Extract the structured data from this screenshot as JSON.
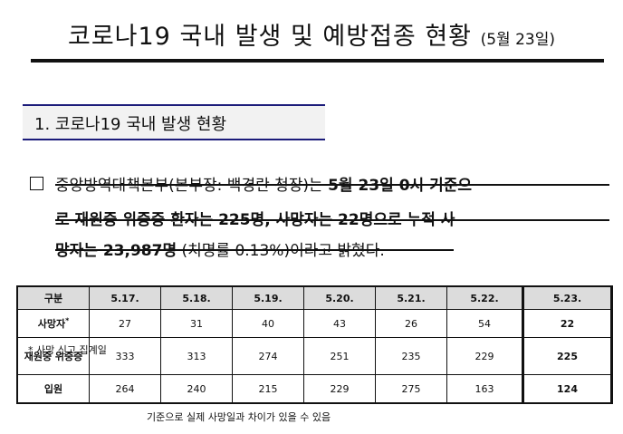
{
  "title": {
    "main": "코로나19 국내 발생 및 예방접종 현황",
    "date": "(5월 23일)"
  },
  "section": {
    "heading": "1. 코로나19 국내 발생 현황"
  },
  "paragraph": {
    "line1_a": "중앙방역대책본부(본부장: 백경란 청장)는 ",
    "line1_b": "5월 23일 0시 기준으",
    "line2": "로 재원중 위중증 환자는 225명, 사망자는 22명으로 누적 사",
    "line3_a": "망자는 23,987명",
    "line3_b": " (치명률 0.13%)이라고 밝혔다."
  },
  "table": {
    "headers": [
      "구분",
      "5.17.",
      "5.18.",
      "5.19.",
      "5.20.",
      "5.21.",
      "5.22.",
      "5.23."
    ],
    "rows": [
      {
        "label": "사망자",
        "label_sup": "*",
        "values": [
          "27",
          "31",
          "40",
          "43",
          "26",
          "54",
          "22"
        ]
      },
      {
        "label": "재원중 위중증",
        "values": [
          "333",
          "313",
          "274",
          "251",
          "235",
          "229",
          "225"
        ]
      },
      {
        "label": "입원",
        "values": [
          "264",
          "240",
          "215",
          "229",
          "275",
          "163",
          "124"
        ]
      }
    ],
    "footnote": "* 사망 신고 집계일"
  },
  "bottom_note": "기준으로 실제 사망일과 차이가 있을 수 있음"
}
